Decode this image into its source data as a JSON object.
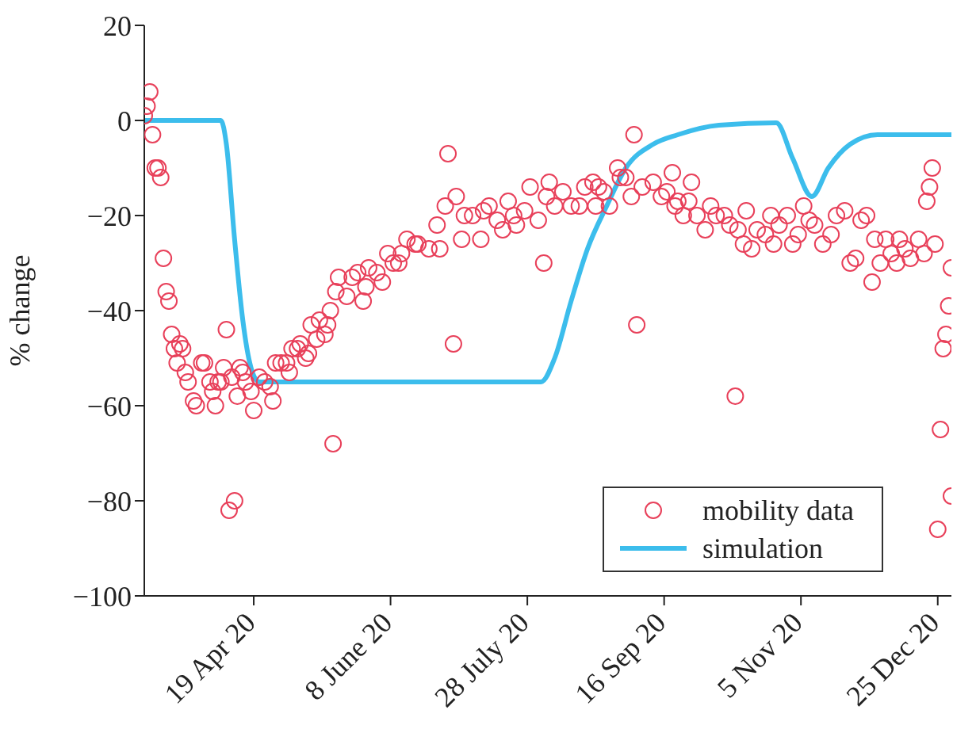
{
  "chart_data": {
    "type": "scatter",
    "ylabel": "% change",
    "xlim": [
      "2020-03-10",
      "2020-12-30"
    ],
    "ylim": [
      -100,
      20
    ],
    "xticks": [
      {
        "value": "2020-04-19",
        "label": "19 Apr 20"
      },
      {
        "value": "2020-06-08",
        "label": "8 June 20"
      },
      {
        "value": "2020-07-28",
        "label": "28 July 20"
      },
      {
        "value": "2020-09-16",
        "label": "16 Sep 20"
      },
      {
        "value": "2020-11-05",
        "label": "5 Nov 20"
      },
      {
        "value": "2020-12-25",
        "label": "25 Dec 20"
      }
    ],
    "yticks": [
      20,
      0,
      -20,
      -40,
      -60,
      -80,
      -100
    ],
    "grid": false,
    "legend": "bottom right",
    "series": [
      {
        "name": "mobility data",
        "marker": "circle",
        "color": "#e8405a",
        "x": [
          "2020-03-10",
          "2020-03-11",
          "2020-03-12",
          "2020-03-13",
          "2020-03-14",
          "2020-03-15",
          "2020-03-16",
          "2020-03-17",
          "2020-03-18",
          "2020-03-19",
          "2020-03-20",
          "2020-03-21",
          "2020-03-22",
          "2020-03-23",
          "2020-03-24",
          "2020-03-25",
          "2020-03-26",
          "2020-03-28",
          "2020-03-29",
          "2020-03-31",
          "2020-04-01",
          "2020-04-03",
          "2020-04-04",
          "2020-04-05",
          "2020-04-06",
          "2020-04-07",
          "2020-04-08",
          "2020-04-09",
          "2020-04-10",
          "2020-04-11",
          "2020-04-12",
          "2020-04-13",
          "2020-04-14",
          "2020-04-15",
          "2020-04-16",
          "2020-04-18",
          "2020-04-19",
          "2020-04-21",
          "2020-04-23",
          "2020-04-25",
          "2020-04-26",
          "2020-04-27",
          "2020-04-29",
          "2020-05-01",
          "2020-05-02",
          "2020-05-03",
          "2020-05-05",
          "2020-05-06",
          "2020-05-08",
          "2020-05-09",
          "2020-05-10",
          "2020-05-12",
          "2020-05-13",
          "2020-05-15",
          "2020-05-16",
          "2020-05-17",
          "2020-05-18",
          "2020-05-19",
          "2020-05-20",
          "2020-05-23",
          "2020-05-25",
          "2020-05-27",
          "2020-05-29",
          "2020-05-30",
          "2020-05-31",
          "2020-06-03",
          "2020-06-05",
          "2020-06-07",
          "2020-06-09",
          "2020-06-11",
          "2020-06-12",
          "2020-06-14",
          "2020-06-17",
          "2020-06-18",
          "2020-06-22",
          "2020-06-25",
          "2020-06-26",
          "2020-06-28",
          "2020-06-29",
          "2020-07-01",
          "2020-07-02",
          "2020-07-04",
          "2020-07-05",
          "2020-07-08",
          "2020-07-11",
          "2020-07-12",
          "2020-07-14",
          "2020-07-17",
          "2020-07-19",
          "2020-07-21",
          "2020-07-23",
          "2020-07-24",
          "2020-07-27",
          "2020-07-29",
          "2020-08-01",
          "2020-08-03",
          "2020-08-04",
          "2020-08-05",
          "2020-08-07",
          "2020-08-10",
          "2020-08-13",
          "2020-08-16",
          "2020-08-18",
          "2020-08-21",
          "2020-08-22",
          "2020-08-23",
          "2020-08-25",
          "2020-08-27",
          "2020-08-30",
          "2020-08-31",
          "2020-09-02",
          "2020-09-04",
          "2020-09-05",
          "2020-09-06",
          "2020-09-08",
          "2020-09-12",
          "2020-09-15",
          "2020-09-17",
          "2020-09-19",
          "2020-09-20",
          "2020-09-21",
          "2020-09-23",
          "2020-09-25",
          "2020-09-26",
          "2020-09-28",
          "2020-10-01",
          "2020-10-03",
          "2020-10-05",
          "2020-10-08",
          "2020-10-10",
          "2020-10-12",
          "2020-10-13",
          "2020-10-15",
          "2020-10-16",
          "2020-10-18",
          "2020-10-20",
          "2020-10-23",
          "2020-10-25",
          "2020-10-26",
          "2020-10-28",
          "2020-10-31",
          "2020-11-02",
          "2020-11-04",
          "2020-11-06",
          "2020-11-08",
          "2020-11-10",
          "2020-11-13",
          "2020-11-16",
          "2020-11-18",
          "2020-11-21",
          "2020-11-23",
          "2020-11-25",
          "2020-11-27",
          "2020-11-29",
          "2020-12-01",
          "2020-12-02",
          "2020-12-04",
          "2020-12-06",
          "2020-12-08",
          "2020-12-10",
          "2020-12-11",
          "2020-12-13",
          "2020-12-15",
          "2020-12-18",
          "2020-12-20",
          "2020-12-21",
          "2020-12-22",
          "2020-12-23",
          "2020-12-24",
          "2020-12-25",
          "2020-12-26",
          "2020-12-27",
          "2020-12-28",
          "2020-12-29",
          "2020-12-30",
          "2020-12-30"
        ],
        "values": [
          1,
          3,
          6,
          -3,
          -10,
          -10,
          -12,
          -29,
          -36,
          -38,
          -45,
          -48,
          -51,
          -47,
          -48,
          -53,
          -55,
          -59,
          -60,
          -51,
          -51,
          -55,
          -57,
          -60,
          -55,
          -55,
          -52,
          -44,
          -82,
          -54,
          -80,
          -58,
          -52,
          -53,
          -55,
          -57,
          -61,
          -54,
          -55,
          -56,
          -59,
          -51,
          -51,
          -51,
          -53,
          -48,
          -48,
          -47,
          -50,
          -49,
          -43,
          -46,
          -42,
          -45,
          -43,
          -40,
          -68,
          -36,
          -33,
          -37,
          -33,
          -32,
          -38,
          -35,
          -31,
          -32,
          -34,
          -28,
          -30,
          -30,
          -28,
          -25,
          -26,
          -26,
          -27,
          -22,
          -27,
          -18,
          -7,
          -47,
          -16,
          -25,
          -20,
          -20,
          -25,
          -19,
          -18,
          -21,
          -23,
          -17,
          -20,
          -22,
          -19,
          -14,
          -21,
          -30,
          -16,
          -13,
          -18,
          -15,
          -18,
          -18,
          -14,
          -13,
          -18,
          -14,
          -15,
          -18,
          -10,
          -12,
          -12,
          -16,
          -3,
          -43,
          -14,
          -13,
          -16,
          -15,
          -11,
          -18,
          -17,
          -20,
          -17,
          -13,
          -20,
          -23,
          -18,
          -20,
          -20,
          -22,
          -58,
          -23,
          -26,
          -19,
          -27,
          -23,
          -24,
          -20,
          -26,
          -22,
          -20,
          -26,
          -24,
          -18,
          -21,
          -22,
          -26,
          -24,
          -20,
          -19,
          -30,
          -29,
          -21,
          -20,
          -34,
          -25,
          -30,
          -25,
          -28,
          -30,
          -25,
          -27,
          -29,
          -25,
          -28,
          -17,
          -14,
          -10,
          -26,
          -86,
          -65,
          -48,
          -45,
          -39,
          -31,
          -79
        ]
      },
      {
        "name": "simulation",
        "type": "line",
        "marker": "none",
        "color": "#3cbdec",
        "x": [
          "2020-03-10",
          "2020-04-07",
          "2020-04-09",
          "2020-04-12",
          "2020-04-15",
          "2020-04-18",
          "2020-04-21",
          "2020-08-02",
          "2020-08-07",
          "2020-08-13",
          "2020-08-19",
          "2020-08-26",
          "2020-09-02",
          "2020-09-12",
          "2020-09-21",
          "2020-10-06",
          "2020-10-27",
          "2020-11-02",
          "2020-11-09",
          "2020-11-15",
          "2020-11-23",
          "2020-12-03",
          "2020-12-30"
        ],
        "values": [
          0,
          0,
          -5,
          -25,
          -42,
          -52,
          -55,
          -55,
          -50,
          -38,
          -27,
          -18,
          -10,
          -5,
          -3,
          -1,
          -0.5,
          -8,
          -16,
          -10,
          -5,
          -3,
          -3
        ]
      }
    ]
  }
}
